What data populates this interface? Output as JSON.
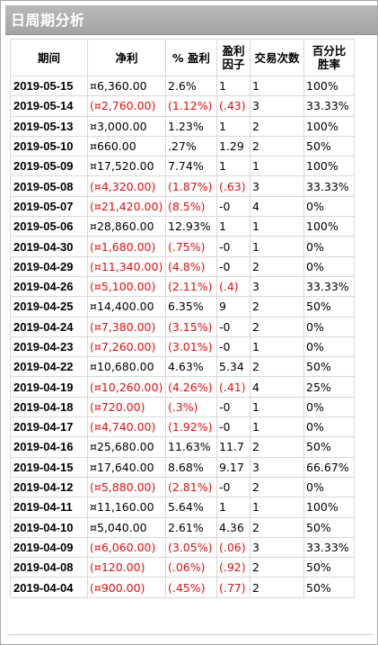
{
  "window": {
    "title": "日周期分析"
  },
  "colors": {
    "negative": "#e01010",
    "title_bar": "#adadad"
  },
  "table": {
    "headers": {
      "period": "期间",
      "net_profit": "净利",
      "pct_profit": "% 盈利",
      "profit_factor_1": "盈利",
      "profit_factor_2": "因子",
      "trades": "交易次数",
      "pct_win_1": "百分比",
      "pct_win_2": "胜率"
    },
    "rows": [
      {
        "date": "2019-05-15",
        "net": "¤6,360.00",
        "pct": "2.6%",
        "factor": "1",
        "trades": "1",
        "win": "100%",
        "neg": false
      },
      {
        "date": "2019-05-14",
        "net": "(¤2,760.00)",
        "pct": "(1.12%)",
        "factor": "(.43)",
        "trades": "3",
        "win": "33.33%",
        "neg": true
      },
      {
        "date": "2019-05-13",
        "net": "¤3,000.00",
        "pct": "1.23%",
        "factor": "1",
        "trades": "2",
        "win": "100%",
        "neg": false
      },
      {
        "date": "2019-05-10",
        "net": "¤660.00",
        "pct": ".27%",
        "factor": "1.29",
        "trades": "2",
        "win": "50%",
        "neg": false
      },
      {
        "date": "2019-05-09",
        "net": "¤17,520.00",
        "pct": "7.74%",
        "factor": "1",
        "trades": "1",
        "win": "100%",
        "neg": false
      },
      {
        "date": "2019-05-08",
        "net": "(¤4,320.00)",
        "pct": "(1.87%)",
        "factor": "(.63)",
        "trades": "3",
        "win": "33.33%",
        "neg": true
      },
      {
        "date": "2019-05-07",
        "net": "(¤21,420.00)",
        "pct": "(8.5%)",
        "factor": "-0",
        "trades": "4",
        "win": "0%",
        "neg": true
      },
      {
        "date": "2019-05-06",
        "net": "¤28,860.00",
        "pct": "12.93%",
        "factor": "1",
        "trades": "1",
        "win": "100%",
        "neg": false
      },
      {
        "date": "2019-04-30",
        "net": "(¤1,680.00)",
        "pct": "(.75%)",
        "factor": "-0",
        "trades": "1",
        "win": "0%",
        "neg": true
      },
      {
        "date": "2019-04-29",
        "net": "(¤11,340.00)",
        "pct": "(4.8%)",
        "factor": "-0",
        "trades": "2",
        "win": "0%",
        "neg": true
      },
      {
        "date": "2019-04-26",
        "net": "(¤5,100.00)",
        "pct": "(2.11%)",
        "factor": "(.4)",
        "trades": "3",
        "win": "33.33%",
        "neg": true
      },
      {
        "date": "2019-04-25",
        "net": "¤14,400.00",
        "pct": "6.35%",
        "factor": "9",
        "trades": "2",
        "win": "50%",
        "neg": false
      },
      {
        "date": "2019-04-24",
        "net": "(¤7,380.00)",
        "pct": "(3.15%)",
        "factor": "-0",
        "trades": "2",
        "win": "0%",
        "neg": true
      },
      {
        "date": "2019-04-23",
        "net": "(¤7,260.00)",
        "pct": "(3.01%)",
        "factor": "-0",
        "trades": "1",
        "win": "0%",
        "neg": true
      },
      {
        "date": "2019-04-22",
        "net": "¤10,680.00",
        "pct": "4.63%",
        "factor": "5.34",
        "trades": "2",
        "win": "50%",
        "neg": false
      },
      {
        "date": "2019-04-19",
        "net": "(¤10,260.00)",
        "pct": "(4.26%)",
        "factor": "(.41)",
        "trades": "4",
        "win": "25%",
        "neg": true
      },
      {
        "date": "2019-04-18",
        "net": "(¤720.00)",
        "pct": "(.3%)",
        "factor": "-0",
        "trades": "1",
        "win": "0%",
        "neg": true
      },
      {
        "date": "2019-04-17",
        "net": "(¤4,740.00)",
        "pct": "(1.92%)",
        "factor": "-0",
        "trades": "1",
        "win": "0%",
        "neg": true
      },
      {
        "date": "2019-04-16",
        "net": "¤25,680.00",
        "pct": "11.63%",
        "factor": "11.7",
        "trades": "2",
        "win": "50%",
        "neg": false
      },
      {
        "date": "2019-04-15",
        "net": "¤17,640.00",
        "pct": "8.68%",
        "factor": "9.17",
        "trades": "3",
        "win": "66.67%",
        "neg": false
      },
      {
        "date": "2019-04-12",
        "net": "(¤5,880.00)",
        "pct": "(2.81%)",
        "factor": "-0",
        "trades": "2",
        "win": "0%",
        "neg": true
      },
      {
        "date": "2019-04-11",
        "net": "¤11,160.00",
        "pct": "5.64%",
        "factor": "1",
        "trades": "1",
        "win": "100%",
        "neg": false
      },
      {
        "date": "2019-04-10",
        "net": "¤5,040.00",
        "pct": "2.61%",
        "factor": "4.36",
        "trades": "2",
        "win": "50%",
        "neg": false
      },
      {
        "date": "2019-04-09",
        "net": "(¤6,060.00)",
        "pct": "(3.05%)",
        "factor": "(.06)",
        "trades": "3",
        "win": "33.33%",
        "neg": true
      },
      {
        "date": "2019-04-08",
        "net": "(¤120.00)",
        "pct": "(.06%)",
        "factor": "(.92)",
        "trades": "2",
        "win": "50%",
        "neg": true
      },
      {
        "date": "2019-04-04",
        "net": "(¤900.00)",
        "pct": "(.45%)",
        "factor": "(.77)",
        "trades": "2",
        "win": "50%",
        "neg": true
      }
    ]
  }
}
